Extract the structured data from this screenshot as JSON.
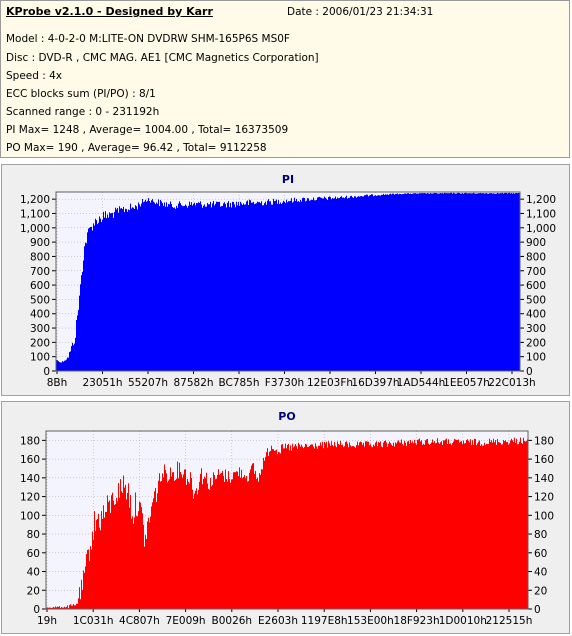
{
  "info": {
    "title": "KProbe v2.1.0 - Designed by Karr",
    "date": "Date : 2006/01/23 21:34:31",
    "lines": [
      "Model : 4-0-2-0 M:LITE-ON DVDRW SHM-165P6S MS0F",
      "Disc : DVD-R , CMC MAG. AE1 [CMC Magnetics Corporation]",
      "Speed : 4x",
      "ECC blocks sum (PI/PO) : 8/1",
      "Scanned range : 0 - 231192h",
      "PI Max= 1248 , Average= 1004.00 , Total= 16373509",
      "PO Max= 190 , Average= 96.42 , Total= 9112258"
    ]
  },
  "colors": {
    "pi": "#0000ff",
    "po": "#ff0000",
    "plot_bg": "#f4f4ff",
    "grid": "#a0a0a0",
    "title": "#000080"
  },
  "chart_data": [
    {
      "type": "area",
      "title": "PI",
      "ylim": [
        0,
        1250
      ],
      "yticks": [
        0,
        100,
        200,
        300,
        400,
        500,
        600,
        700,
        800,
        900,
        1000,
        1100,
        1200
      ],
      "ytick_labels": [
        "0",
        "100",
        "200",
        "300",
        "400",
        "500",
        "600",
        "700",
        "800",
        "900",
        "1,000",
        "1,100",
        "1,200"
      ],
      "xtick_labels": [
        "8Bh",
        "23051h",
        "55207h",
        "87582h",
        "BC785h",
        "F3730h",
        "12E03Fh",
        "16D397h",
        "1AD544h",
        "1EE057h",
        "22C013h"
      ],
      "xrange_label": "0 - 231192h",
      "series": [
        {
          "x": [
            0,
            0.01,
            0.025,
            0.04,
            0.05,
            0.06,
            0.07,
            0.08,
            0.09,
            0.1,
            0.115,
            0.13,
            0.15,
            0.17,
            0.19,
            0.2,
            0.21,
            0.22,
            0.25,
            0.3,
            0.35,
            0.4,
            0.45,
            0.5,
            0.55,
            0.6,
            0.65,
            0.7,
            0.75,
            0.8,
            0.85,
            0.9,
            0.95,
            1.0
          ],
          "values": [
            80,
            60,
            100,
            250,
            550,
            880,
            1000,
            1050,
            1080,
            1100,
            1110,
            1130,
            1150,
            1160,
            1200,
            1210,
            1195,
            1190,
            1170,
            1180,
            1175,
            1185,
            1190,
            1200,
            1210,
            1215,
            1225,
            1235,
            1240,
            1242,
            1243,
            1243,
            1243,
            1243
          ],
          "noise": [
            5,
            5,
            20,
            60,
            80,
            60,
            60,
            60,
            60,
            70,
            60,
            50,
            50,
            50,
            30,
            30,
            30,
            40,
            40,
            40,
            40,
            40,
            35,
            30,
            25,
            20,
            15,
            10,
            5,
            5,
            5,
            5,
            5,
            5
          ]
        }
      ]
    },
    {
      "type": "area",
      "title": "PO",
      "ylim": [
        0,
        190
      ],
      "yticks": [
        0,
        20,
        40,
        60,
        80,
        100,
        120,
        140,
        160,
        180
      ],
      "ytick_labels": [
        "0",
        "20",
        "40",
        "60",
        "80",
        "100",
        "120",
        "140",
        "160",
        "180"
      ],
      "xtick_labels": [
        "19h",
        "1C031h",
        "4C807h",
        "7E009h",
        "B0026h",
        "E2603h",
        "1197E8h",
        "153E00h",
        "18F923h",
        "1D0010h",
        "212515h"
      ],
      "series": [
        {
          "x": [
            0,
            0.04,
            0.06,
            0.075,
            0.085,
            0.1,
            0.12,
            0.14,
            0.16,
            0.17,
            0.18,
            0.19,
            0.2,
            0.205,
            0.22,
            0.24,
            0.26,
            0.28,
            0.3,
            0.31,
            0.32,
            0.34,
            0.36,
            0.38,
            0.4,
            0.42,
            0.43,
            0.44,
            0.45,
            0.46,
            0.47,
            0.48,
            0.5,
            0.55,
            0.6,
            0.65,
            0.7,
            0.75,
            0.8,
            0.85,
            0.9,
            0.95,
            1.0
          ],
          "values": [
            2,
            3,
            5,
            30,
            60,
            100,
            110,
            125,
            140,
            135,
            110,
            125,
            100,
            80,
            120,
            150,
            150,
            155,
            145,
            130,
            150,
            140,
            148,
            145,
            150,
            145,
            155,
            140,
            160,
            170,
            178,
            172,
            175,
            176,
            178,
            177,
            178,
            180,
            181,
            180,
            180,
            181,
            182
          ],
          "noise": [
            1,
            2,
            5,
            20,
            20,
            25,
            25,
            20,
            20,
            25,
            25,
            25,
            25,
            20,
            25,
            15,
            15,
            15,
            20,
            20,
            15,
            15,
            12,
            12,
            10,
            10,
            10,
            10,
            10,
            8,
            8,
            8,
            8,
            6,
            6,
            6,
            6,
            6,
            6,
            6,
            6,
            6,
            6
          ]
        }
      ]
    }
  ]
}
